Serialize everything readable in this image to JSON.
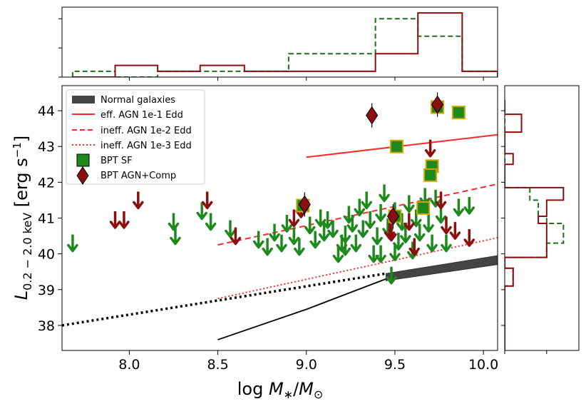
{
  "chart_data": {
    "type": "scatter",
    "xlabel": "log M*/M⊙",
    "ylabel": "L 0.2−2.0 keV [erg s⁻¹]",
    "xlim": [
      7.62,
      10.08
    ],
    "ylim": [
      37.3,
      44.7
    ],
    "xticks": [
      8.0,
      8.5,
      9.0,
      9.5,
      10.0
    ],
    "xtick_labels": [
      "8.0",
      "8.5",
      "9.0",
      "9.5",
      "10.0"
    ],
    "yticks": [
      38,
      39,
      40,
      41,
      42,
      43,
      44
    ],
    "ytick_labels": [
      "38",
      "39",
      "40",
      "41",
      "42",
      "43",
      "44"
    ],
    "legend": {
      "position": "top-left",
      "entries": [
        {
          "label": "Normal galaxies",
          "kind": "band",
          "color": "#444444"
        },
        {
          "label": "eff. AGN 1e-1 Edd",
          "kind": "solid",
          "color": "#ff2a2a"
        },
        {
          "label": "ineff. AGN 1e-2 Edd",
          "kind": "dashed",
          "color": "#ff2a2a"
        },
        {
          "label": "ineff. AGN 1e-3 Edd",
          "kind": "dotted",
          "color": "#ff2a2a"
        },
        {
          "label": "BPT SF",
          "kind": "square",
          "color": "#1e8a1e"
        },
        {
          "label": "BPT AGN+Comp",
          "kind": "diamond",
          "color": "#8b0f0f"
        }
      ]
    },
    "lines": [
      {
        "name": "eff. AGN 1e-1 Edd",
        "style": "solid",
        "color": "#ff2a2a",
        "x": [
          9.0,
          10.08
        ],
        "y": [
          42.7,
          43.33
        ]
      },
      {
        "name": "ineff. AGN 1e-2 Edd",
        "style": "dashed",
        "color": "#ff2a2a",
        "x": [
          8.5,
          10.08
        ],
        "y": [
          40.25,
          41.95
        ]
      },
      {
        "name": "ineff. AGN 1e-3 Edd",
        "style": "dotted",
        "color": "#ff2a2a",
        "x": [
          8.5,
          10.08
        ],
        "y": [
          38.75,
          40.45
        ]
      },
      {
        "name": "black dotted extrapolation",
        "style": "dotted-thick",
        "color": "#000000",
        "x": [
          7.62,
          9.45
        ],
        "y": [
          38.0,
          39.45
        ]
      },
      {
        "name": "black solid relation",
        "style": "solid",
        "color": "#000000",
        "x": [
          8.5,
          9.0,
          9.45
        ],
        "y": [
          37.6,
          38.45,
          39.3
        ]
      }
    ],
    "normal_galaxies_band": {
      "x": [
        9.45,
        10.08
      ],
      "y_low": [
        39.25,
        39.7
      ],
      "y_high": [
        39.45,
        39.95
      ]
    },
    "bpt_sf_detections": [
      {
        "x": 9.51,
        "y": 43.0
      },
      {
        "x": 9.74,
        "y": 44.1
      },
      {
        "x": 9.86,
        "y": 43.95
      },
      {
        "x": 9.71,
        "y": 42.45
      },
      {
        "x": 9.7,
        "y": 42.2
      },
      {
        "x": 9.66,
        "y": 41.28
      },
      {
        "x": 8.98,
        "y": 41.35
      },
      {
        "x": 9.5,
        "y": 41.05
      }
    ],
    "bpt_agn_comp_detections": [
      {
        "x": 9.37,
        "y": 43.87
      },
      {
        "x": 9.74,
        "y": 44.17
      },
      {
        "x": 8.99,
        "y": 41.38
      },
      {
        "x": 9.49,
        "y": 41.05
      }
    ],
    "green_upper_limits": [
      [
        7.68,
        40.3
      ],
      [
        8.25,
        40.9
      ],
      [
        8.26,
        40.5
      ],
      [
        8.41,
        41.2
      ],
      [
        8.46,
        40.9
      ],
      [
        8.57,
        40.7
      ],
      [
        8.73,
        40.4
      ],
      [
        8.78,
        40.2
      ],
      [
        8.82,
        40.6
      ],
      [
        8.86,
        40.3
      ],
      [
        8.89,
        40.85
      ],
      [
        8.93,
        40.5
      ],
      [
        8.96,
        40.2
      ],
      [
        9.02,
        40.8
      ],
      [
        9.05,
        40.4
      ],
      [
        9.08,
        41.0
      ],
      [
        9.1,
        40.6
      ],
      [
        9.12,
        40.95
      ],
      [
        9.15,
        40.7
      ],
      [
        9.18,
        40.0
      ],
      [
        9.2,
        40.3
      ],
      [
        9.22,
        40.55
      ],
      [
        9.24,
        41.1
      ],
      [
        9.26,
        40.85
      ],
      [
        9.28,
        40.3
      ],
      [
        9.3,
        41.3
      ],
      [
        9.32,
        40.7
      ],
      [
        9.34,
        41.5
      ],
      [
        9.36,
        40.95
      ],
      [
        9.38,
        40.0
      ],
      [
        9.4,
        40.5
      ],
      [
        9.42,
        41.15
      ],
      [
        9.44,
        41.7
      ],
      [
        9.46,
        40.75
      ],
      [
        9.48,
        39.4
      ],
      [
        9.5,
        41.2
      ],
      [
        9.52,
        40.35
      ],
      [
        9.54,
        40.9
      ],
      [
        9.56,
        40.55
      ],
      [
        9.58,
        41.4
      ],
      [
        9.6,
        40.1
      ],
      [
        9.62,
        41.0
      ],
      [
        9.64,
        40.6
      ],
      [
        9.67,
        41.6
      ],
      [
        9.69,
        40.85
      ],
      [
        9.71,
        40.3
      ],
      [
        9.73,
        41.55
      ],
      [
        9.76,
        41.1
      ],
      [
        9.79,
        40.3
      ],
      [
        9.86,
        41.3
      ],
      [
        9.92,
        41.35
      ],
      [
        9.22,
        40.2
      ],
      [
        9.42,
        40.0
      ],
      [
        9.5,
        40.05
      ]
    ],
    "red_upper_limits": [
      [
        7.92,
        40.95
      ],
      [
        7.97,
        40.95
      ],
      [
        8.05,
        41.5
      ],
      [
        8.44,
        41.5
      ],
      [
        8.6,
        40.5
      ],
      [
        8.93,
        41.0
      ],
      [
        8.97,
        41.25
      ],
      [
        9.47,
        40.65
      ],
      [
        9.58,
        40.9
      ],
      [
        9.61,
        40.2
      ],
      [
        9.7,
        42.95
      ],
      [
        9.76,
        41.5
      ],
      [
        9.79,
        40.8
      ],
      [
        9.84,
        40.65
      ],
      [
        9.92,
        40.45
      ],
      [
        9.48,
        40.6
      ]
    ],
    "top_histogram": {
      "bin_edges": [
        7.68,
        7.92,
        8.16,
        8.4,
        8.65,
        8.9,
        9.15,
        9.39,
        9.63,
        9.88,
        10.08
      ],
      "green_dashed": [
        1,
        0,
        1,
        1,
        1,
        4,
        4,
        10,
        7,
        1
      ],
      "red_solid": [
        0,
        2,
        1,
        2,
        1,
        1,
        1,
        4,
        11,
        1
      ]
    },
    "right_histogram": {
      "bin_edges": [
        37.3,
        38.2,
        39.1,
        39.6,
        39.9,
        40.3,
        40.85,
        41.05,
        41.5,
        41.85,
        42.5,
        42.8,
        43.4,
        43.9,
        44.3
      ],
      "green_dashed": [
        0,
        0,
        1,
        0,
        5,
        7,
        5,
        4,
        3,
        0,
        0,
        0,
        0,
        0
      ],
      "red_solid": [
        0,
        0,
        1,
        0,
        5,
        5,
        4,
        5,
        7,
        0,
        1,
        0,
        2,
        0
      ]
    }
  }
}
